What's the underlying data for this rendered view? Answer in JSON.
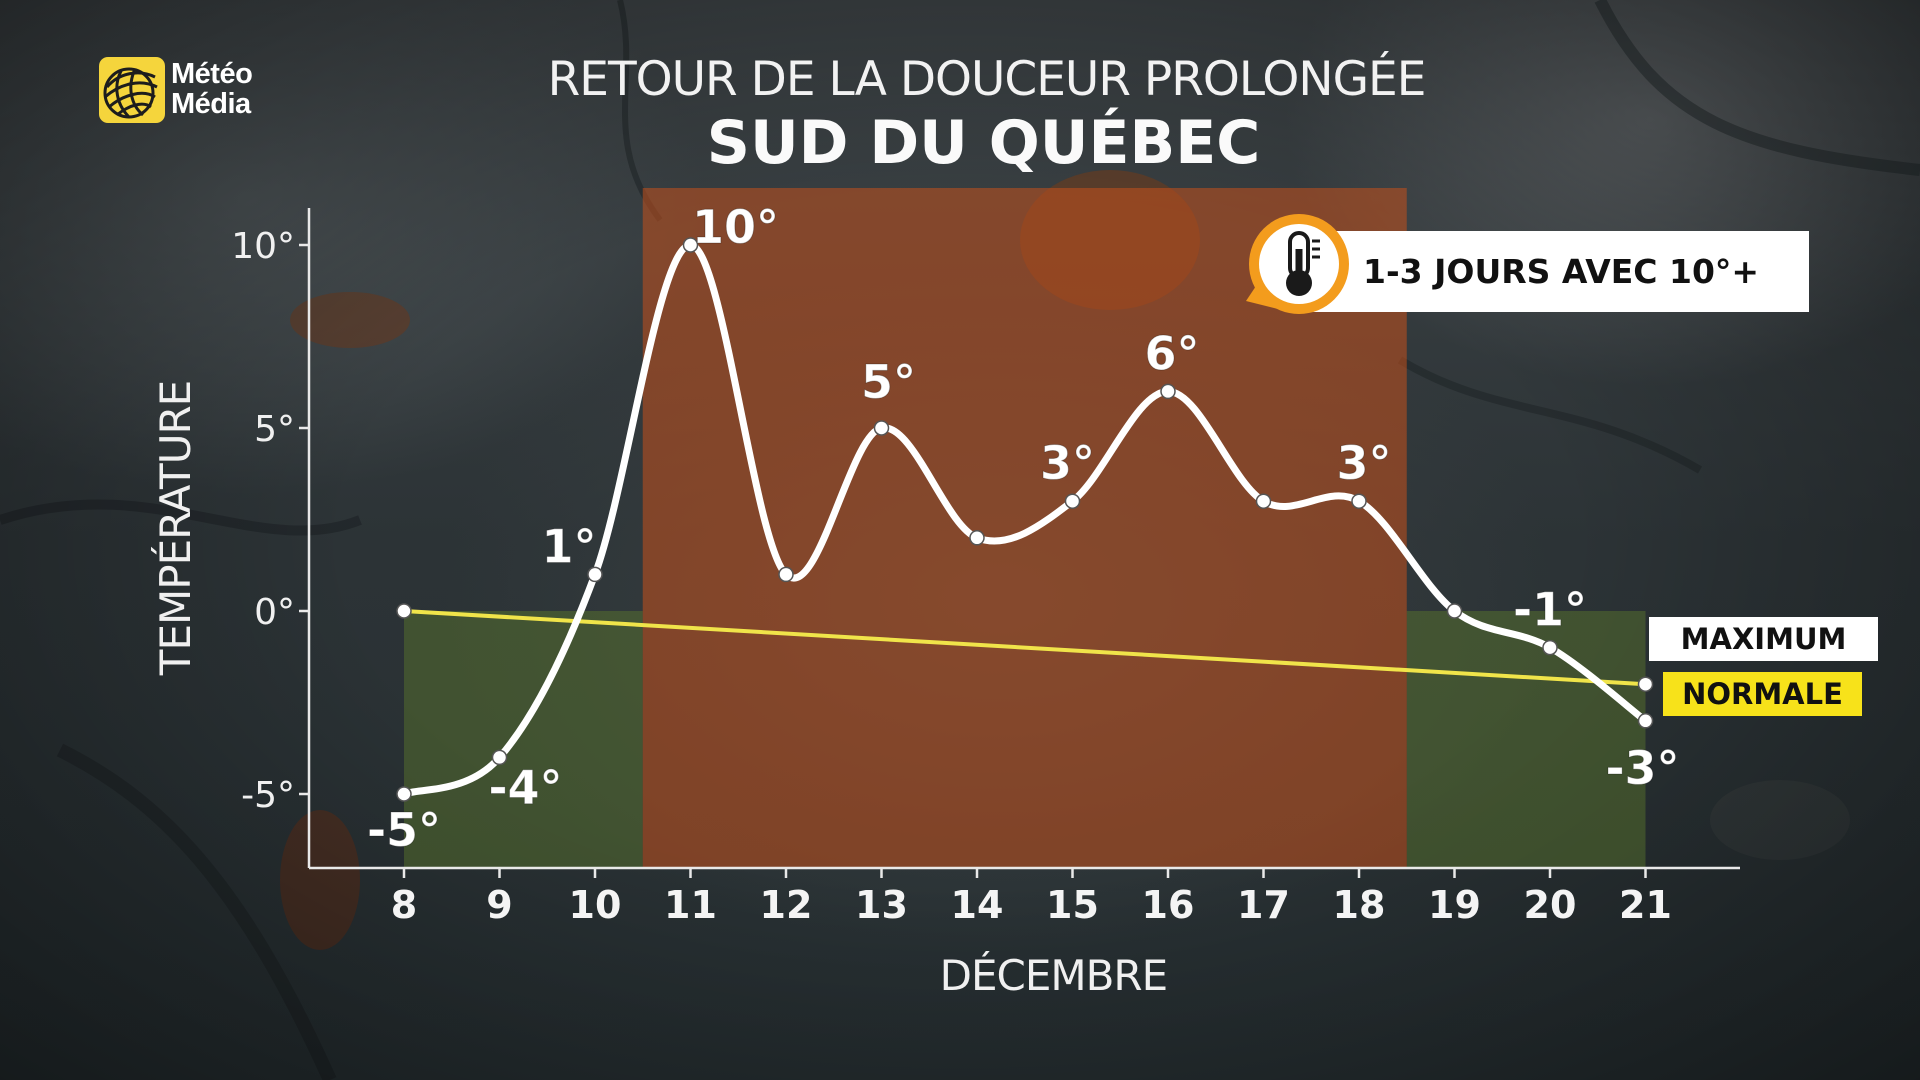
{
  "header": {
    "brand_line1": "Météo",
    "brand_line2": "Média",
    "title": "RETOUR DE LA DOUCEUR PROLONGÉE",
    "subtitle": "SUD DU QUÉBEC"
  },
  "badge": {
    "text": "1-3 JOURS AVEC 10°+",
    "icon": "thermometer-icon"
  },
  "legend": {
    "maximum": "MAXIMUM",
    "normale": "NORMALE"
  },
  "colors": {
    "maximum_line": "#ffffff",
    "normal_line": "#f0e44a",
    "mild_period_band": "#c4501b",
    "normal_band": "#5d7a2c",
    "badge_orange": "#f39c1d",
    "logo_yellow": "#f5d53c"
  },
  "chart_data": {
    "type": "line",
    "xlabel": "DÉCEMBRE",
    "ylabel": "TEMPÉRATURE",
    "x": [
      8,
      9,
      10,
      11,
      12,
      13,
      14,
      15,
      16,
      17,
      18,
      19,
      20,
      21
    ],
    "xlim": [
      7,
      22
    ],
    "ylim": [
      -7,
      11
    ],
    "y_ticks": [
      10,
      5,
      0,
      -5
    ],
    "y_tick_labels": [
      "10°",
      "5°",
      "0°",
      "-5°"
    ],
    "highlight_range": [
      10.5,
      18.5
    ],
    "series": [
      {
        "name": "MAXIMUM",
        "values": [
          -5,
          -4,
          1,
          10,
          1,
          5,
          2,
          3,
          6,
          3,
          3,
          0,
          -1,
          -3
        ],
        "point_labels": [
          {
            "x": 8,
            "text": "-5°"
          },
          {
            "x": 9,
            "text": "-4°"
          },
          {
            "x": 10,
            "text": "1°"
          },
          {
            "x": 11,
            "text": "10°"
          },
          {
            "x": 13,
            "text": "5°"
          },
          {
            "x": 15,
            "text": "3°"
          },
          {
            "x": 16,
            "text": "6°"
          },
          {
            "x": 18,
            "text": "3°"
          },
          {
            "x": 20,
            "text": "-1°"
          },
          {
            "x": 21,
            "text": "-3°"
          }
        ]
      },
      {
        "name": "NORMALE",
        "x": [
          8,
          21
        ],
        "values": [
          0,
          -2
        ]
      }
    ]
  }
}
